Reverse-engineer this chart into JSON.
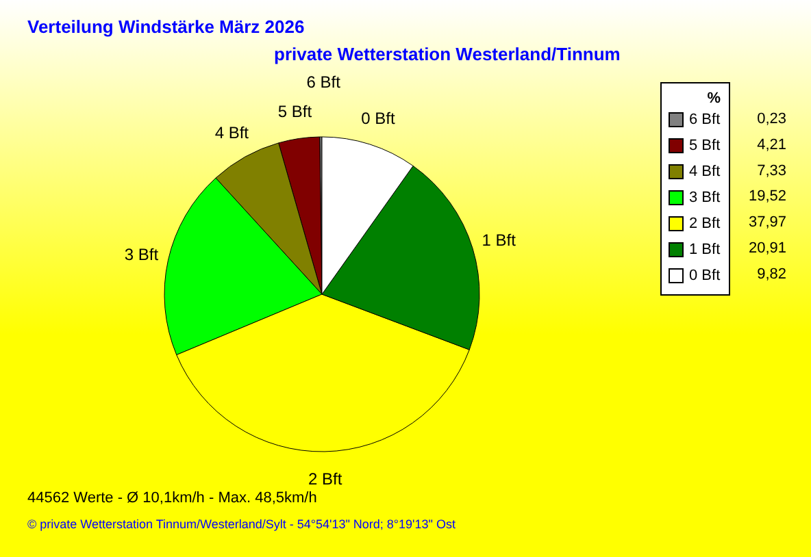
{
  "chart_data": {
    "type": "pie",
    "title": "Verteilung Windstärke  März 2026",
    "subtitle": "private Wetterstation Westerland/Tinnum",
    "legend_title": "%",
    "legend": "right",
    "categories": [
      "6 Bft",
      "5 Bft",
      "4 Bft",
      "3 Bft",
      "2 Bft",
      "1 Bft",
      "0 Bft"
    ],
    "values": [
      0.23,
      4.21,
      7.33,
      19.52,
      37.97,
      20.91,
      9.82
    ],
    "value_labels": [
      "0,23",
      "4,21",
      "7,33",
      "19,52",
      "37,97",
      "20,91",
      "9,82"
    ],
    "colors": [
      "#808080",
      "#800000",
      "#808000",
      "#00ff00",
      "#ffff00",
      "#008000",
      "#ffffff"
    ],
    "annotations": [
      "44562 Werte   -   Ø 10,1km/h  -  Max. 48,5km/h",
      "© private Wetterstation Tinnum/Westerland/Sylt  -  54°54'13\" Nord; 8°19'13\" Ost"
    ]
  }
}
